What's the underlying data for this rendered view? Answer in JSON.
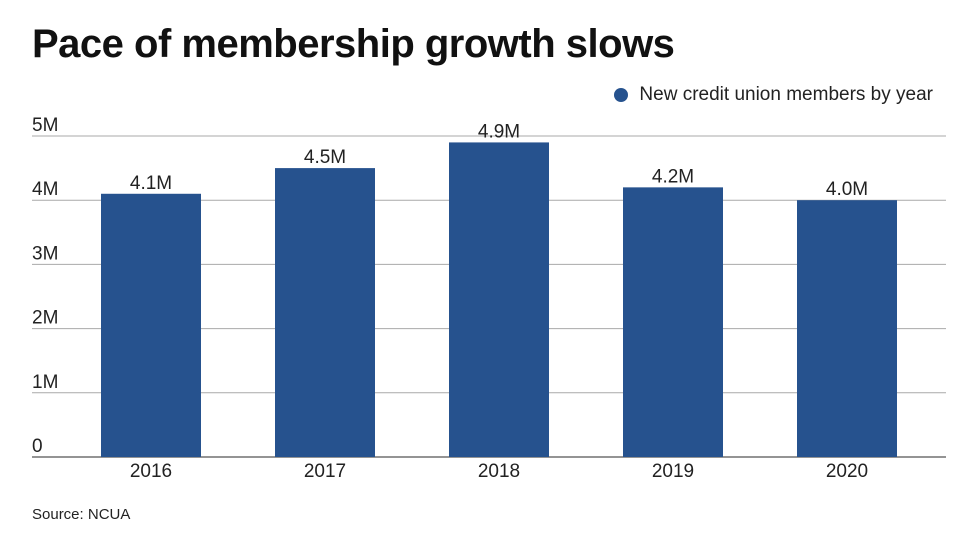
{
  "title": "Pace of membership growth slows",
  "source": "Source: NCUA",
  "legend_label": "New credit union members by year",
  "colors": {
    "bar": "#26528e",
    "grid": "#a9a9a9",
    "axis": "#555555"
  },
  "chart_data": {
    "type": "bar",
    "title": "Pace of membership growth slows",
    "categories": [
      "2016",
      "2017",
      "2018",
      "2019",
      "2020"
    ],
    "series": [
      {
        "name": "New credit union members by year",
        "values": [
          4.1,
          4.5,
          4.9,
          4.2,
          4.0
        ],
        "labels": [
          "4.1M",
          "4.5M",
          "4.9M",
          "4.2M",
          "4.0M"
        ]
      }
    ],
    "xlabel": "",
    "ylabel": "",
    "ylim": [
      0,
      5
    ],
    "yticks": [
      0,
      1,
      2,
      3,
      4,
      5
    ],
    "ytick_labels": [
      "0",
      "1M",
      "2M",
      "3M",
      "4M",
      "5M"
    ],
    "grid": true,
    "legend_position": "top-right"
  }
}
